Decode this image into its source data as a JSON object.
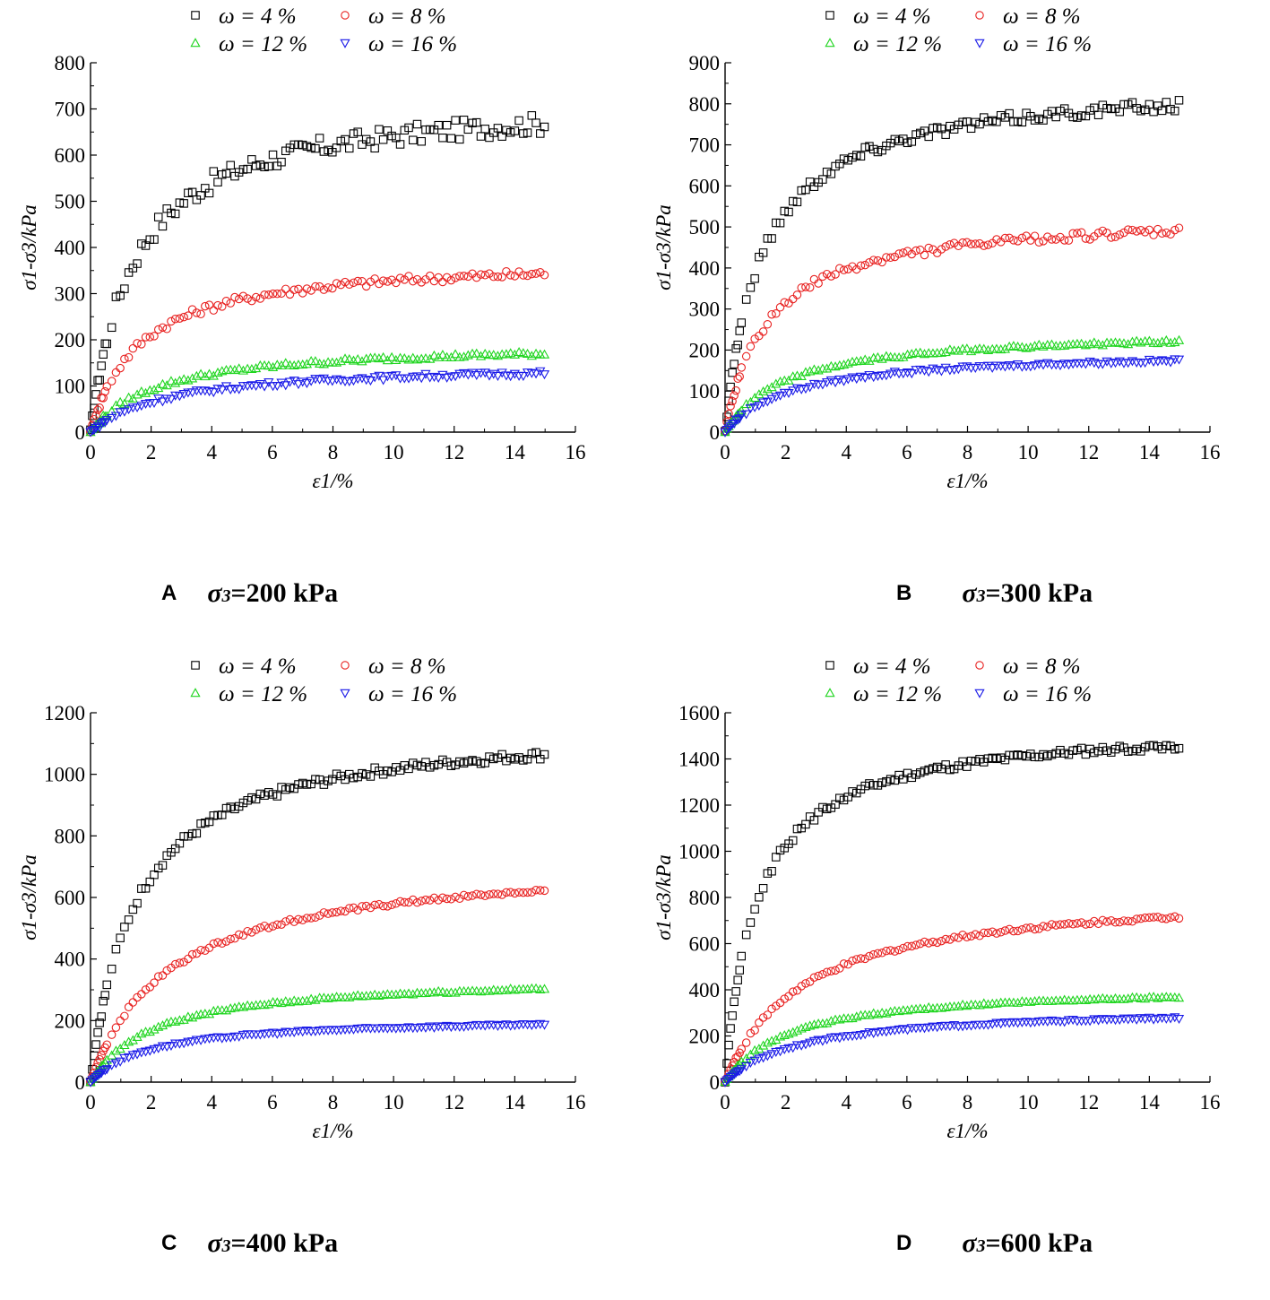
{
  "colors": {
    "omega4": "#000000",
    "omega8": "#e8201f",
    "omega12": "#1fd51f",
    "omega16": "#1a1ae8"
  },
  "axis_labels": {
    "x": "ε1/%",
    "y": "σ1-σ3/kPa"
  },
  "chart_data": [
    {
      "id": "A",
      "type": "scatter",
      "caption_letter": "A",
      "caption_symbol": "σ",
      "caption_subscript": "3",
      "caption_text": "=200 kPa",
      "xlabel": "ε1/%",
      "ylabel": "σ1-σ3/kPa",
      "xlim": [
        0,
        16
      ],
      "ylim": [
        0,
        800
      ],
      "xticks": [
        "0",
        "2",
        "4",
        "6",
        "8",
        "10",
        "12",
        "14",
        "16"
      ],
      "yticks": [
        "0",
        "100",
        "200",
        "300",
        "400",
        "500",
        "600",
        "700",
        "800"
      ],
      "legend": [
        "ω = 4 %",
        "ω = 8 %",
        "ω = 12 %",
        "ω = 16 %"
      ],
      "series": [
        {
          "name": "ω = 4 %",
          "marker": "square",
          "color": "#000000",
          "a": 730,
          "b": 1.4,
          "noise": 22
        },
        {
          "name": "ω = 8 %",
          "marker": "circle",
          "color": "#e8201f",
          "a": 380,
          "b": 1.6,
          "noise": 9
        },
        {
          "name": "ω = 12 %",
          "marker": "triangle-up",
          "color": "#1fd51f",
          "a": 195,
          "b": 2.2,
          "noise": 5
        },
        {
          "name": "ω = 16 %",
          "marker": "triangle-down",
          "color": "#1a1ae8",
          "a": 150,
          "b": 2.6,
          "noise": 5
        }
      ]
    },
    {
      "id": "B",
      "type": "scatter",
      "caption_letter": "B",
      "caption_symbol": "σ",
      "caption_subscript": "3",
      "caption_text": "=300 kPa",
      "xlabel": "ε1/%",
      "ylabel": "σ1-σ3/kPa",
      "xlim": [
        0,
        16
      ],
      "ylim": [
        0,
        900
      ],
      "xticks": [
        "0",
        "2",
        "4",
        "6",
        "8",
        "10",
        "12",
        "14",
        "16"
      ],
      "yticks": [
        "0",
        "100",
        "200",
        "300",
        "400",
        "500",
        "600",
        "700",
        "800",
        "900"
      ],
      "legend": [
        "ω = 4 %",
        "ω = 8 %",
        "ω = 12 %",
        "ω = 16 %"
      ],
      "series": [
        {
          "name": "ω = 4 %",
          "marker": "square",
          "color": "#000000",
          "a": 860,
          "b": 1.2,
          "noise": 14
        },
        {
          "name": "ω = 8 %",
          "marker": "circle",
          "color": "#e8201f",
          "a": 535,
          "b": 1.4,
          "noise": 10
        },
        {
          "name": "ω = 12 %",
          "marker": "triangle-up",
          "color": "#1fd51f",
          "a": 250,
          "b": 2.0,
          "noise": 4
        },
        {
          "name": "ω = 16 %",
          "marker": "triangle-down",
          "color": "#1a1ae8",
          "a": 200,
          "b": 2.2,
          "noise": 4
        }
      ]
    },
    {
      "id": "C",
      "type": "scatter",
      "caption_letter": "C",
      "caption_symbol": "σ",
      "caption_subscript": "3",
      "caption_text": "=400 kPa",
      "xlabel": "ε1/%",
      "ylabel": "σ1-σ3/kPa",
      "xlim": [
        0,
        16
      ],
      "ylim": [
        0,
        1200
      ],
      "xticks": [
        "0",
        "2",
        "4",
        "6",
        "8",
        "10",
        "12",
        "14",
        "16"
      ],
      "yticks": [
        "0",
        "200",
        "400",
        "600",
        "800",
        "1000",
        "1200"
      ],
      "legend": [
        "ω = 4 %",
        "ω = 8 %",
        "ω = 12 %",
        "ω = 16 %"
      ],
      "series": [
        {
          "name": "ω = 4 %",
          "marker": "square",
          "color": "#000000",
          "a": 1170,
          "b": 1.5,
          "noise": 14
        },
        {
          "name": "ω = 8 %",
          "marker": "circle",
          "color": "#e8201f",
          "a": 730,
          "b": 2.6,
          "noise": 6
        },
        {
          "name": "ω = 12 %",
          "marker": "triangle-up",
          "color": "#1fd51f",
          "a": 345,
          "b": 2.1,
          "noise": 4
        },
        {
          "name": "ω = 16 %",
          "marker": "triangle-down",
          "color": "#1a1ae8",
          "a": 212,
          "b": 2.0,
          "noise": 3
        }
      ]
    },
    {
      "id": "D",
      "type": "scatter",
      "caption_letter": "D",
      "caption_symbol": "σ",
      "caption_subscript": "3",
      "caption_text": "=600 kPa",
      "xlabel": "ε1/%",
      "ylabel": "σ1-σ3/kPa",
      "xlim": [
        0,
        16
      ],
      "ylim": [
        0,
        1600
      ],
      "xticks": [
        "0",
        "2",
        "4",
        "6",
        "8",
        "10",
        "12",
        "14",
        "16"
      ],
      "yticks": [
        "0",
        "200",
        "400",
        "600",
        "800",
        "1000",
        "1200",
        "1400",
        "1600"
      ],
      "legend": [
        "ω = 4 %",
        "ω = 8 %",
        "ω = 12 %",
        "ω = 16 %"
      ],
      "series": [
        {
          "name": "ω = 4 %",
          "marker": "square",
          "color": "#000000",
          "a": 1560,
          "b": 1.05,
          "noise": 16
        },
        {
          "name": "ω = 8 %",
          "marker": "circle",
          "color": "#e8201f",
          "a": 840,
          "b": 2.6,
          "noise": 8
        },
        {
          "name": "ω = 12 %",
          "marker": "triangle-up",
          "color": "#1fd51f",
          "a": 420,
          "b": 2.1,
          "noise": 4
        },
        {
          "name": "ω = 16 %",
          "marker": "triangle-down",
          "color": "#1a1ae8",
          "a": 325,
          "b": 2.5,
          "noise": 4
        }
      ]
    }
  ]
}
